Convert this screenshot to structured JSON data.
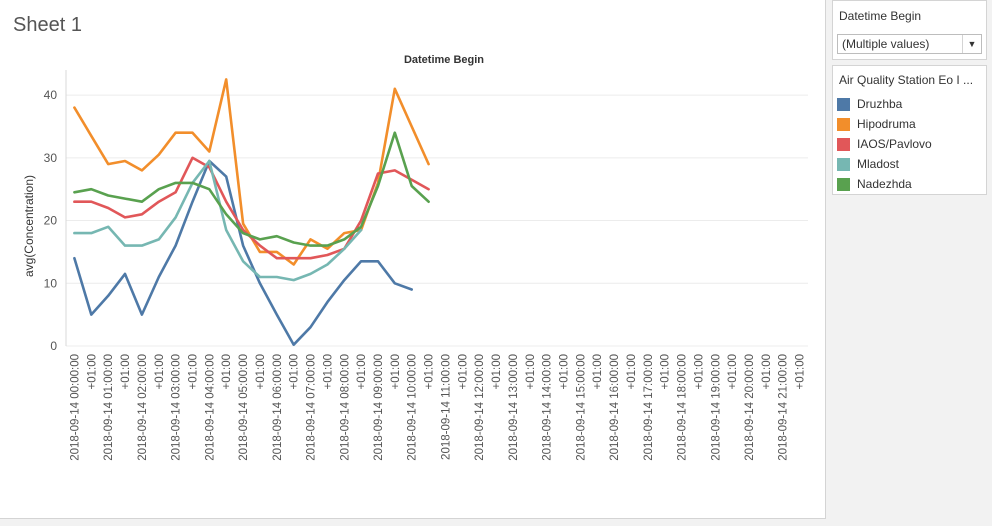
{
  "sheet": {
    "title": "Sheet 1"
  },
  "filter": {
    "title": "Datetime Begin",
    "value": "(Multiple values)",
    "arrow_icon": "chevron-down-icon"
  },
  "legend": {
    "title": "Air Quality Station Eo I ...",
    "items": [
      {
        "label": "Druzhba",
        "color": "#4e79a7"
      },
      {
        "label": "Hipodruma",
        "color": "#f28e2b"
      },
      {
        "label": "IAOS/Pavlovo",
        "color": "#e15759"
      },
      {
        "label": "Mladost",
        "color": "#76b7b2"
      },
      {
        "label": "Nadezhda",
        "color": "#59a14f"
      }
    ]
  },
  "chart_data": {
    "type": "line",
    "title": "Datetime Begin",
    "ylabel": "avg(Concentration)",
    "ylim": [
      0,
      44
    ],
    "yticks": [
      0,
      10,
      20,
      30,
      40
    ],
    "grid": true,
    "legend_position": "right",
    "categories": [
      "2018-09-14 00:00:00",
      "+01:00",
      "2018-09-14 01:00:00",
      "+01:00",
      "2018-09-14 02:00:00",
      "+01:00",
      "2018-09-14 03:00:00",
      "+01:00",
      "2018-09-14 04:00:00",
      "+01:00",
      "2018-09-14 05:00:00",
      "+01:00",
      "2018-09-14 06:00:00",
      "+01:00",
      "2018-09-14 07:00:00",
      "+01:00",
      "2018-09-14 08:00:00",
      "+01:00",
      "2018-09-14 09:00:00",
      "+01:00",
      "2018-09-14 10:00:00",
      "+01:00",
      "2018-09-14 11:00:00",
      "+01:00",
      "2018-09-14 12:00:00",
      "+01:00",
      "2018-09-14 13:00:00",
      "+01:00",
      "2018-09-14 14:00:00",
      "+01:00",
      "2018-09-14 15:00:00",
      "+01:00",
      "2018-09-14 16:00:00",
      "+01:00",
      "2018-09-14 17:00:00",
      "+01:00",
      "2018-09-14 18:00:00",
      "+01:00",
      "2018-09-14 19:00:00",
      "+01:00",
      "2018-09-14 20:00:00",
      "+01:00",
      "2018-09-14 21:00:00",
      "+01:00"
    ],
    "series": [
      {
        "name": "Druzhba",
        "color": "#4e79a7",
        "values": [
          14,
          5,
          8,
          11.5,
          5,
          11,
          16,
          23,
          29.5,
          27,
          16,
          10,
          5,
          0.2,
          3,
          7,
          10.5,
          13.5,
          13.5,
          10,
          9,
          null,
          null,
          null,
          null,
          null,
          null,
          null,
          null,
          null,
          null,
          null,
          null,
          null,
          null,
          null,
          null,
          null,
          null,
          null,
          null,
          null,
          null,
          null
        ]
      },
      {
        "name": "Hipodruma",
        "color": "#f28e2b",
        "values": [
          38,
          33.5,
          29,
          29.5,
          28,
          30.5,
          34,
          34,
          31,
          42.5,
          19.5,
          15,
          15,
          13,
          17,
          15.5,
          18,
          18.5,
          26,
          41,
          35,
          29,
          null,
          null,
          null,
          null,
          null,
          null,
          null,
          null,
          null,
          null,
          null,
          null,
          null,
          null,
          null,
          null,
          null,
          null,
          null,
          null,
          null,
          null
        ]
      },
      {
        "name": "IAOS/Pavlovo",
        "color": "#e15759",
        "values": [
          23,
          23,
          22,
          20.5,
          21,
          23,
          24.5,
          30,
          28.5,
          23,
          18.5,
          16,
          14,
          14,
          14,
          14.5,
          15.5,
          20,
          27.5,
          28,
          26.5,
          25,
          null,
          null,
          null,
          null,
          null,
          null,
          null,
          null,
          null,
          null,
          null,
          null,
          null,
          null,
          null,
          null,
          null,
          null,
          null,
          null,
          null,
          null
        ]
      },
      {
        "name": "Mladost",
        "color": "#76b7b2",
        "values": [
          18,
          18,
          19,
          16,
          16,
          17,
          20.5,
          26,
          29.5,
          18.5,
          13.5,
          11,
          11,
          10.5,
          11.5,
          13,
          15.5,
          18.5,
          null,
          null,
          null,
          null,
          null,
          null,
          null,
          null,
          null,
          null,
          null,
          null,
          null,
          null,
          null,
          null,
          null,
          null,
          null,
          null,
          null,
          null,
          null,
          null,
          null,
          null
        ]
      },
      {
        "name": "Nadezhda",
        "color": "#59a14f",
        "values": [
          24.5,
          25,
          24,
          23.5,
          23,
          25,
          26,
          26,
          25,
          21,
          18,
          17,
          17.5,
          16.5,
          16,
          16,
          17,
          19,
          25.5,
          34,
          25.5,
          23,
          null,
          null,
          null,
          null,
          null,
          null,
          null,
          null,
          null,
          null,
          null,
          null,
          null,
          null,
          null,
          null,
          null,
          null,
          null,
          null,
          null,
          null
        ]
      }
    ]
  }
}
